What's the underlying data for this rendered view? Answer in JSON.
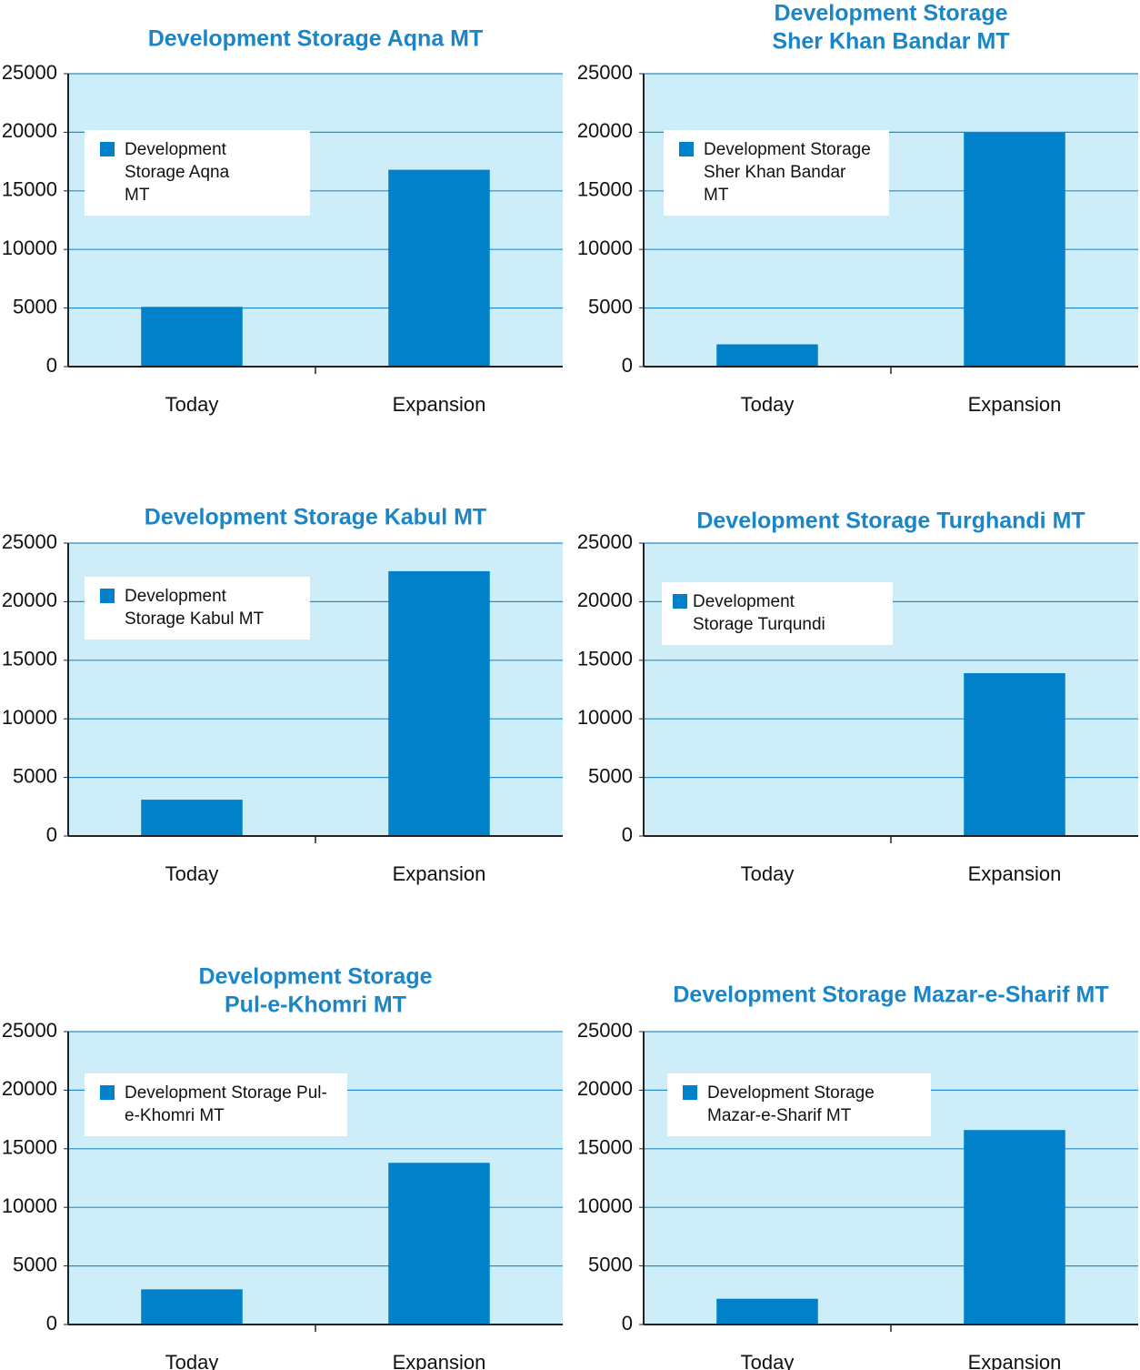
{
  "chart_data": [
    {
      "type": "bar",
      "title": [
        "Development Storage Aqna MT"
      ],
      "categories": [
        "Today",
        "Expansion"
      ],
      "series": [
        {
          "name": "Development Storage Aqna MT",
          "color": "#0081c9",
          "values": [
            5100,
            16800
          ]
        }
      ],
      "ylim": [
        0,
        25000
      ],
      "yticks": [
        0,
        5000,
        10000,
        15000,
        20000,
        25000
      ],
      "grid": true
    },
    {
      "type": "bar",
      "title": [
        "Development Storage",
        "Sher Khan Bandar MT"
      ],
      "categories": [
        "Today",
        "Expansion"
      ],
      "series": [
        {
          "name": "Development Storage Sher Khan Bandar MT",
          "color": "#0081c9",
          "values": [
            1900,
            20000
          ]
        }
      ],
      "ylim": [
        0,
        25000
      ],
      "yticks": [
        0,
        5000,
        10000,
        15000,
        20000,
        25000
      ],
      "grid": true
    },
    {
      "type": "bar",
      "title": [
        "Development Storage Kabul MT"
      ],
      "categories": [
        "Today",
        "Expansion"
      ],
      "series": [
        {
          "name": "Development Storage Kabul MT",
          "color": "#0081c9",
          "values": [
            3100,
            22600
          ]
        }
      ],
      "ylim": [
        0,
        25000
      ],
      "yticks": [
        0,
        5000,
        10000,
        15000,
        20000,
        25000
      ],
      "grid": true
    },
    {
      "type": "bar",
      "title": [
        "Development Storage Turghandi MT"
      ],
      "categories": [
        "Today",
        "Expansion"
      ],
      "series": [
        {
          "name": "Development Storage Turqundi",
          "color": "#0081c9",
          "values": [
            0,
            13900
          ]
        }
      ],
      "ylim": [
        0,
        25000
      ],
      "yticks": [
        0,
        5000,
        10000,
        15000,
        20000,
        25000
      ],
      "grid": true
    },
    {
      "type": "bar",
      "title": [
        "Development Storage",
        "Pul-e-Khomri MT"
      ],
      "categories": [
        "Today",
        "Expansion"
      ],
      "series": [
        {
          "name": "Development Storage Pul-e-Khomri MT",
          "color": "#0081c9",
          "values": [
            3000,
            13800
          ]
        }
      ],
      "ylim": [
        0,
        25000
      ],
      "yticks": [
        0,
        5000,
        10000,
        15000,
        20000,
        25000
      ],
      "grid": true
    },
    {
      "type": "bar",
      "title": [
        "Development Storage Mazar-e-Sharif MT"
      ],
      "categories": [
        "Today",
        "Expansion"
      ],
      "series": [
        {
          "name": "Development Storage Mazar-e-Sharif MT",
          "color": "#0081c9",
          "values": [
            2200,
            16600
          ]
        }
      ],
      "ylim": [
        0,
        25000
      ],
      "yticks": [
        0,
        5000,
        10000,
        15000,
        20000,
        25000
      ],
      "grid": true
    }
  ]
}
